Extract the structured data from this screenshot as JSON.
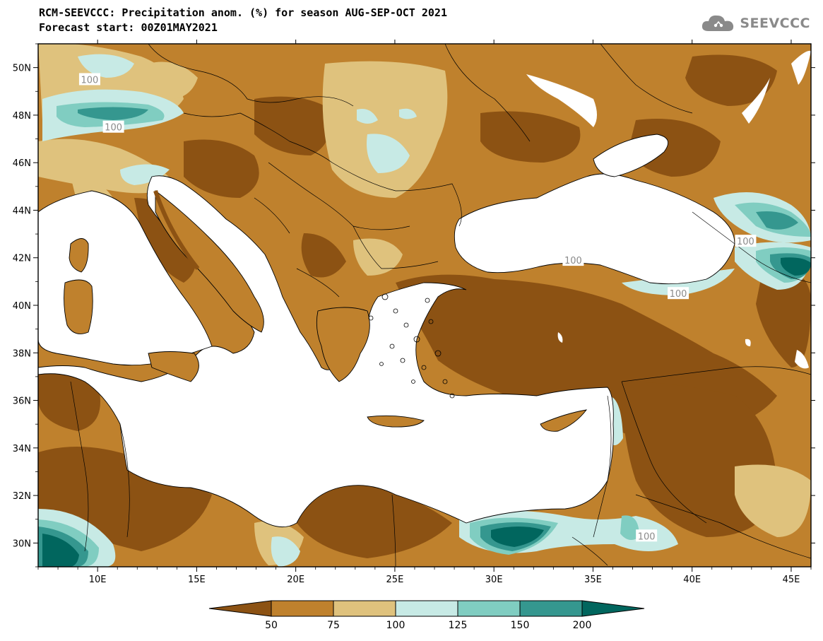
{
  "header": {
    "title_line1": "RCM-SEEVCCC: Precipitation anom. (%) for season AUG-SEP-OCT 2021",
    "title_line2": "Forecast start: 00Z01MAY2021"
  },
  "logo": {
    "text": "SEEVCCC",
    "icon": "cloud-icon"
  },
  "map": {
    "variable": "Precipitation anomaly",
    "unit": "%",
    "lon_range": [
      7,
      46
    ],
    "lat_range": [
      29,
      51
    ],
    "lon_ticks": [
      {
        "value": 10,
        "label": "10E"
      },
      {
        "value": 15,
        "label": "15E"
      },
      {
        "value": 20,
        "label": "20E"
      },
      {
        "value": 25,
        "label": "25E"
      },
      {
        "value": 30,
        "label": "30E"
      },
      {
        "value": 35,
        "label": "35E"
      },
      {
        "value": 40,
        "label": "40E"
      },
      {
        "value": 45,
        "label": "45E"
      }
    ],
    "lat_ticks": [
      {
        "value": 30,
        "label": "30N"
      },
      {
        "value": 32,
        "label": "32N"
      },
      {
        "value": 34,
        "label": "34N"
      },
      {
        "value": 36,
        "label": "36N"
      },
      {
        "value": 38,
        "label": "38N"
      },
      {
        "value": 40,
        "label": "40N"
      },
      {
        "value": 42,
        "label": "42N"
      },
      {
        "value": 44,
        "label": "44N"
      },
      {
        "value": 46,
        "label": "46N"
      },
      {
        "value": 48,
        "label": "48N"
      },
      {
        "value": 50,
        "label": "50N"
      }
    ],
    "contour_labels": [
      {
        "text": "100",
        "lon": 9.6,
        "lat": 49.5
      },
      {
        "text": "100",
        "lon": 10.8,
        "lat": 47.5
      },
      {
        "text": "100",
        "lon": 34.0,
        "lat": 41.9
      },
      {
        "text": "100",
        "lon": 42.7,
        "lat": 42.7
      },
      {
        "text": "100",
        "lon": 39.3,
        "lat": 40.5
      },
      {
        "text": "100",
        "lon": 37.7,
        "lat": 30.3
      }
    ]
  },
  "colorbar": {
    "labels": [
      "50",
      "75",
      "100",
      "125",
      "150",
      "200"
    ],
    "colors": [
      "#8c5213",
      "#bf812d",
      "#dfc27d",
      "#c7eae5",
      "#80cdc1",
      "#35978f",
      "#01665e"
    ]
  },
  "colors": {
    "very_dry": "#8c5213",
    "dry": "#bf812d",
    "slightly_dry": "#dfc27d",
    "slightly_wet": "#c7eae5",
    "wet": "#80cdc1",
    "very_wet": "#35978f",
    "extreme_wet": "#01665e",
    "sea": "#ffffff"
  }
}
